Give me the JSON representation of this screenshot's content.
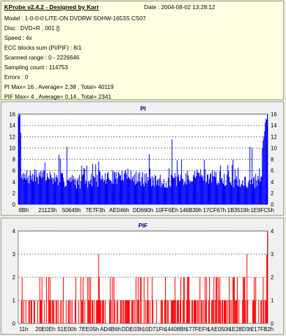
{
  "info": {
    "title": "KProbe v2.4.2 - Designed by Karr",
    "date": "Date : 2004-08-02 13:28:12",
    "lines": [
      "Model : 1-0-0-0 LITE-ON DVDRW SOHW-1653S CS07",
      "Disc : DVD+R , 001 []",
      "Speed : 4x",
      "ECC blocks sum (PI/PIF) : 8/1",
      "Scanned range : 0 - 2226646",
      "Sampling count : 114753",
      "Errors : 0",
      "PI Max= 16 , Average= 2,38 , Total= 40119",
      "PIF Max= 4 , Average= 0,14 , Total= 2341"
    ]
  },
  "chart_data": [
    {
      "type": "bar",
      "title": "PI",
      "color": "#0000ff",
      "title_color": "#000080",
      "ylim": [
        0,
        16
      ],
      "yticks": [
        0,
        2,
        4,
        6,
        8,
        10,
        12,
        14,
        16
      ],
      "xticks": [
        "8Bh",
        "21123h",
        "50649h",
        "7E7F3h",
        "AE046h",
        "DD690h",
        "10FF6Eh",
        "146B39h",
        "17CF67h",
        "1B3519h",
        "1E9FC5h"
      ],
      "grid": true,
      "bins": 340,
      "seed": 7,
      "profile": "pi",
      "summary": {
        "max": 16,
        "average": 2.38,
        "total": 40119
      }
    },
    {
      "type": "bar",
      "title": "PIF",
      "color": "#ff0000",
      "title_color": "#000080",
      "ylim": [
        0,
        4
      ],
      "yticks": [
        0,
        1,
        2,
        3,
        4
      ],
      "xticks": [
        "11h",
        "20E0Eh",
        "51E00h",
        "7EE05h",
        "AD4B6h",
        "DDE03h",
        "10D71Fh",
        "14408Bh",
        "177FEFh",
        "1AE050h",
        "1E28D3h",
        "217FB2h"
      ],
      "grid": true,
      "bins": 340,
      "seed": 11,
      "profile": "pif",
      "summary": {
        "max": 4,
        "average": 0.14,
        "total": 2341
      }
    }
  ]
}
